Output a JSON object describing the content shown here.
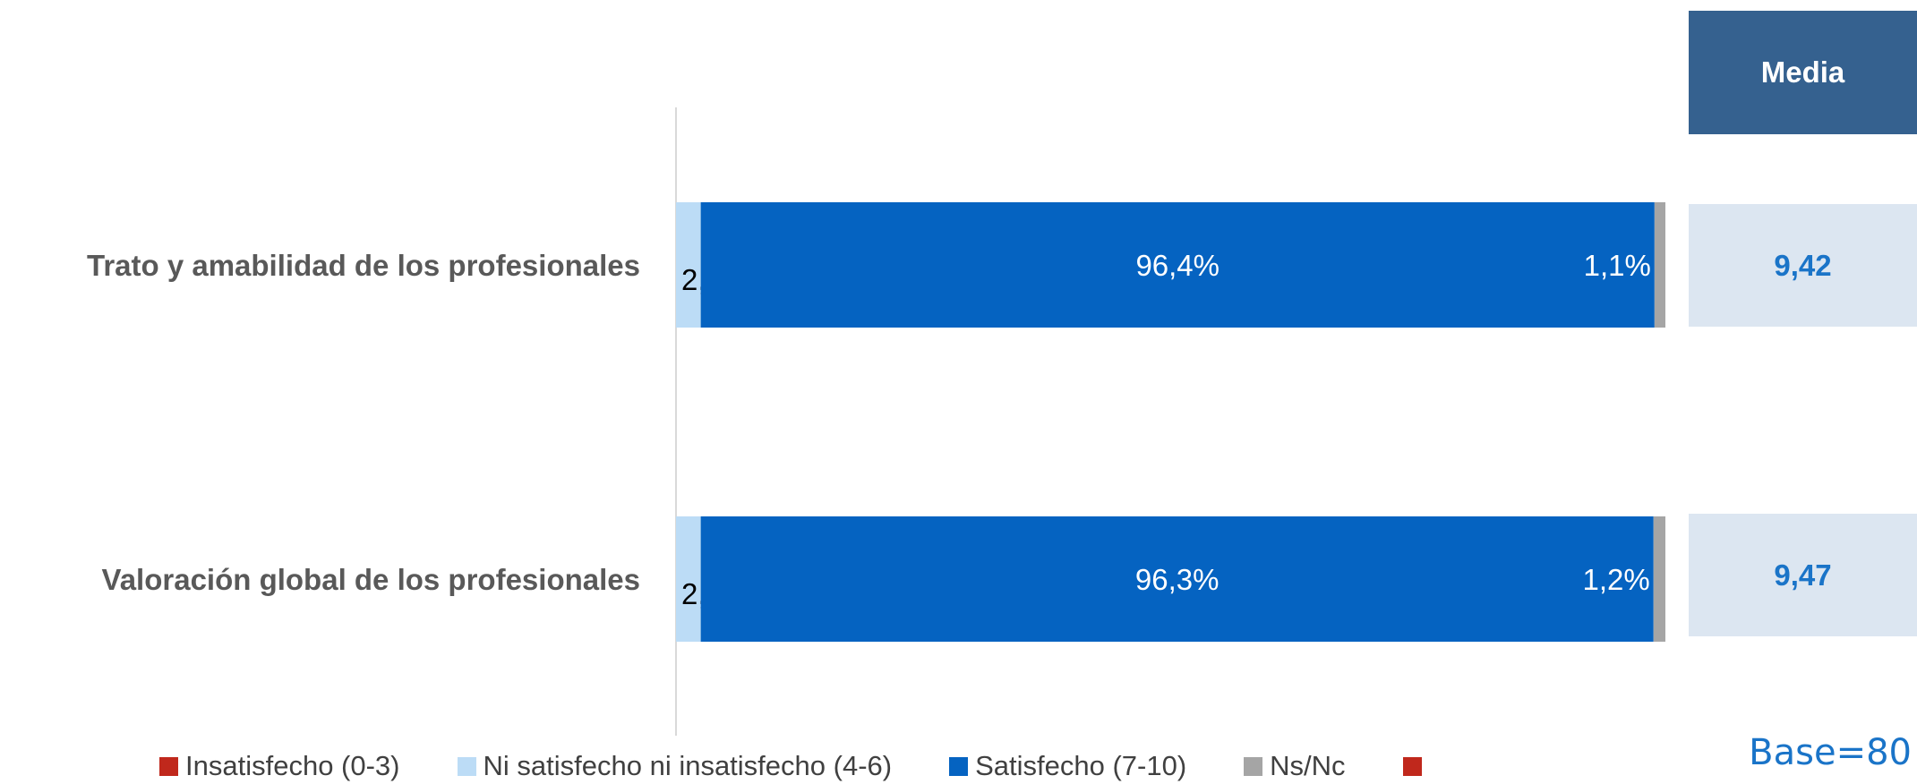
{
  "chart_data": {
    "type": "bar",
    "orientation": "horizontal",
    "stacked": true,
    "categories": [
      "Trato y amabilidad de los profesionales",
      "Valoración global de los profesionales"
    ],
    "series": [
      {
        "name": "Insatisfecho (0-3)",
        "color": "#c0281c",
        "values": [
          0,
          0
        ],
        "labels": [
          "",
          ""
        ]
      },
      {
        "name": "Ni satisfecho ni insatisfecho (4-6)",
        "color": "#bcdcf6",
        "values": [
          2.5,
          2.5
        ],
        "labels": [
          "2,5%",
          "2,5%"
        ]
      },
      {
        "name": "Satisfecho (7-10)",
        "color": "#0563c1",
        "values": [
          96.4,
          96.3
        ],
        "labels": [
          "96,4%",
          "96,3%"
        ]
      },
      {
        "name": "Ns/Nc",
        "color": "#a5a5a5",
        "values": [
          1.1,
          1.2
        ],
        "labels": [
          "1,1%",
          "1,2%"
        ]
      }
    ],
    "xlim": [
      0,
      100
    ],
    "grid": false,
    "legend_position": "bottom"
  },
  "legend_extra_color": "#c0281c",
  "media": {
    "header": "Media",
    "values": [
      "9,42",
      "9,47"
    ]
  },
  "base_label": "Base=80"
}
